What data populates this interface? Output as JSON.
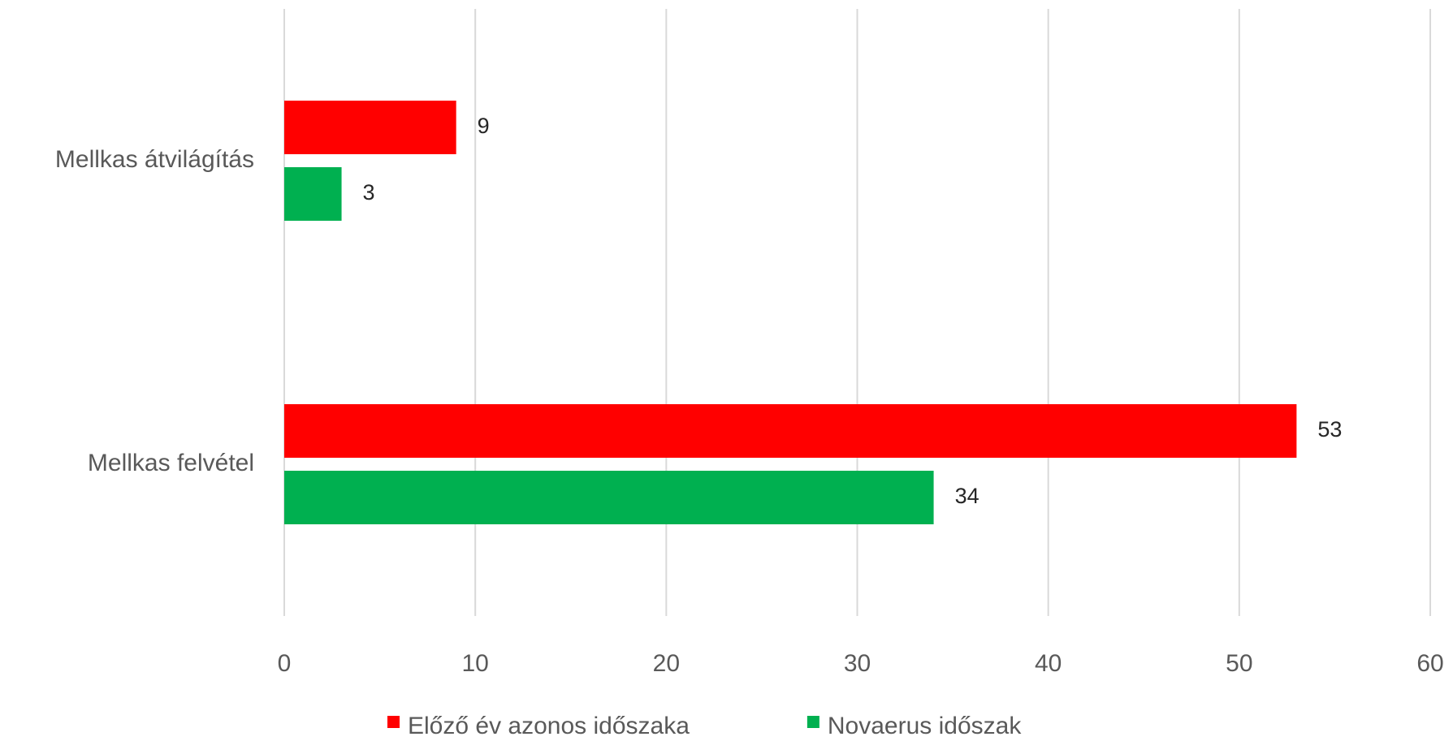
{
  "chart_data": {
    "type": "hbar",
    "categories": [
      "Mellkas átvilágítás",
      "Mellkas felvétel"
    ],
    "series": [
      {
        "name": "Előző év azonos időszaka",
        "color": "#ff0000",
        "values": [
          9,
          53
        ]
      },
      {
        "name": "Novaerus időszak",
        "color": "#00b050",
        "values": [
          3,
          34
        ]
      }
    ],
    "xlim": [
      0,
      60
    ],
    "xticks": [
      0,
      10,
      20,
      30,
      40,
      50,
      60
    ],
    "grid": true,
    "legend": "bottom"
  }
}
